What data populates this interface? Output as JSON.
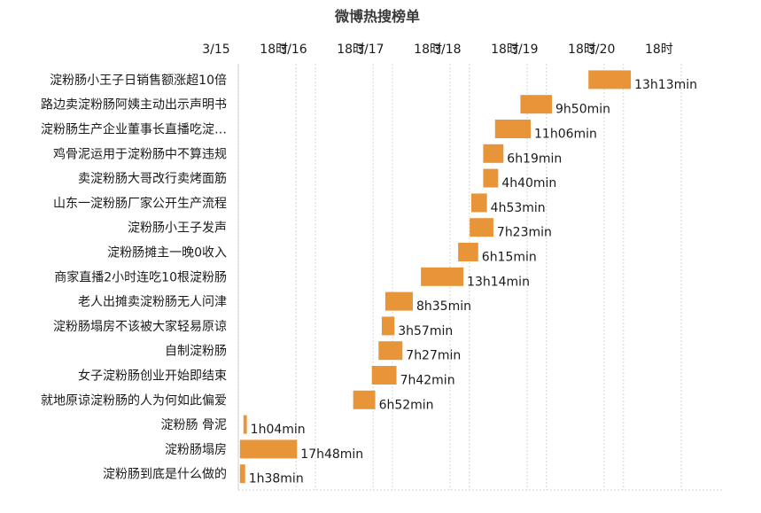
{
  "chart_data": {
    "type": "bar",
    "orientation": "horizontal",
    "title": "微博热搜榜单",
    "x_tick_labels": [
      "3/15",
      "18时",
      "3/16",
      "18时",
      "3/17",
      "18时",
      "3/18",
      "18时",
      "3/19",
      "18时",
      "3/20",
      "18时"
    ],
    "x_tick_hours": [
      0,
      18,
      24,
      42,
      48,
      66,
      72,
      90,
      96,
      114,
      120,
      138
    ],
    "x_range_hours": [
      0,
      151
    ],
    "x_axis_position": "top",
    "grid": true,
    "bar_color": "#e8953a",
    "categories": [
      "淀粉肠小王子日销售额涨超10倍",
      "路边卖淀粉肠阿姨主动出示声明书",
      "淀粉肠生产企业董事长直播吃淀…",
      "鸡骨泥运用于淀粉肠中不算违规",
      "卖淀粉肠大哥改行卖烤面筋",
      "山东一淀粉肠厂家公开生产流程",
      "淀粉肠小王子发声",
      "淀粉肠摊主一晚0收入",
      "商家直播2小时连吃10根淀粉肠",
      "老人出摊卖淀粉肠无人问津",
      "淀粉肠塌房不该被大家轻易原谅",
      "自制淀粉肠",
      "女子淀粉肠创业开始即结束",
      "就地原谅淀粉肠的人为何如此偏爱",
      "淀粉肠 骨泥",
      "淀粉肠塌房",
      "淀粉肠到底是什么做的"
    ],
    "start_hours": [
      109.1,
      87.9,
      80.0,
      76.3,
      76.3,
      72.6,
      72.1,
      68.5,
      56.9,
      45.8,
      44.7,
      43.7,
      41.6,
      35.8,
      1.6,
      0.5,
      0.5
    ],
    "durations_hours": [
      13.22,
      9.83,
      11.1,
      6.32,
      4.67,
      4.88,
      7.38,
      6.25,
      13.23,
      8.58,
      3.95,
      7.45,
      7.7,
      6.87,
      1.07,
      17.8,
      1.63
    ],
    "labels": [
      "13h13min",
      "9h50min",
      "11h06min",
      "6h19min",
      "4h40min",
      "4h53min",
      "7h23min",
      "6h15min",
      "13h14min",
      "8h35min",
      "3h57min",
      "7h27min",
      "7h42min",
      "6h52min",
      "1h04min",
      "17h48min",
      "1h38min"
    ]
  }
}
